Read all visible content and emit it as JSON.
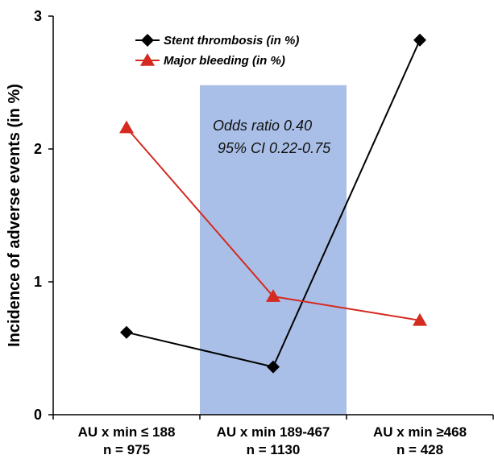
{
  "chart_data": {
    "type": "line",
    "ylabel": "Incidence of adverse events (in %)",
    "ylim": [
      0,
      3
    ],
    "yticks": [
      "0",
      "1",
      "2",
      "3"
    ],
    "categories": [
      {
        "line1": "AU x min ≤ 188",
        "line2": "n = 975"
      },
      {
        "line1": "AU x min 189-467",
        "line2": "n = 1130"
      },
      {
        "line1": "AU x min ≥468",
        "line2": "n = 428"
      }
    ],
    "series": [
      {
        "name": "Stent thrombosis (in %)",
        "values": [
          0.62,
          0.36,
          2.82
        ],
        "marker": "diamond",
        "color": "#000000"
      },
      {
        "name": "Major bleeding (in %)",
        "values": [
          2.16,
          0.89,
          0.71
        ],
        "marker": "triangle",
        "color": "#d42a20"
      }
    ],
    "highlight_band": {
      "category_index": 1,
      "color": "#a9bfe7"
    },
    "annotation": {
      "line1": "Odds ratio 0.40",
      "line2": "95% CI 0.22-0.75"
    },
    "legend_position": "top-center"
  }
}
